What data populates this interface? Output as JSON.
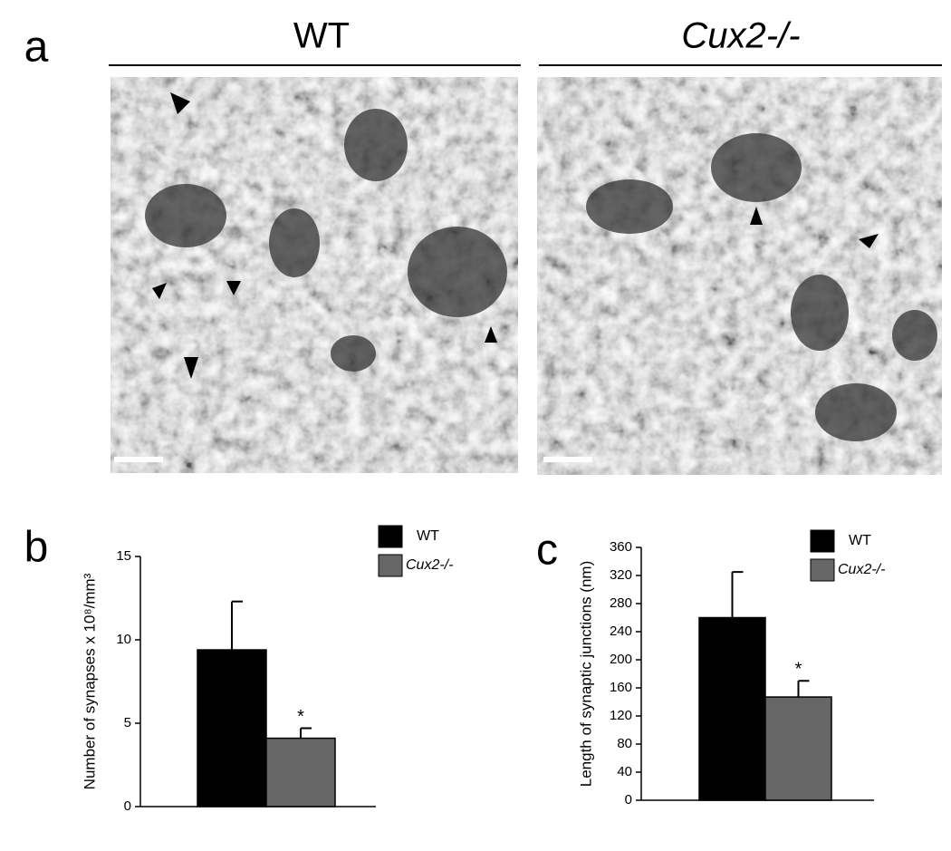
{
  "panel_a": {
    "label": "a",
    "headers": [
      "WT",
      "Cux2-/-"
    ]
  },
  "chart_data": [
    {
      "type": "bar",
      "label": "b",
      "ylabel": "Number of synapses x 10⁸/mm³",
      "series": [
        {
          "name": "WT",
          "color": "#000000",
          "values": [
            9.4
          ],
          "errors": [
            2.9
          ]
        },
        {
          "name": "Cux2-/-",
          "color": "#666666",
          "values": [
            4.1
          ],
          "errors": [
            0.6
          ]
        }
      ],
      "annotation": "*",
      "ylim": [
        0,
        15
      ],
      "yticks": [
        0,
        5,
        10,
        15
      ],
      "legend": "upper right"
    },
    {
      "type": "bar",
      "label": "c",
      "ylabel": "Length of synaptic junctions (nm)",
      "series": [
        {
          "name": "WT",
          "color": "#000000",
          "values": [
            260
          ],
          "errors": [
            65
          ]
        },
        {
          "name": "Cux2-/-",
          "color": "#666666",
          "values": [
            147
          ],
          "errors": [
            23
          ]
        }
      ],
      "annotation": "*",
      "ylim": [
        0,
        360
      ],
      "yticks": [
        0,
        40,
        80,
        120,
        160,
        200,
        240,
        280,
        320,
        360
      ],
      "legend": "upper right"
    }
  ]
}
